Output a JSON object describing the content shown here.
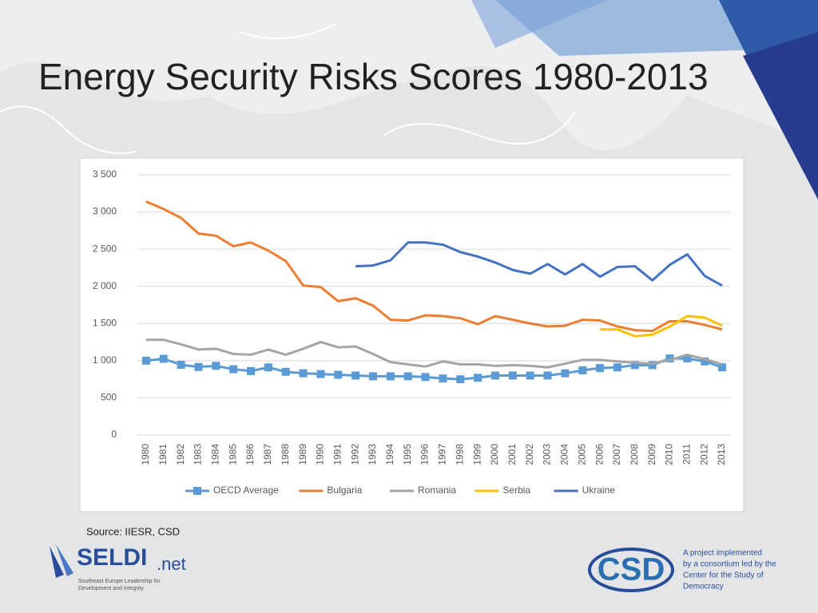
{
  "slide_title": "Energy Security Risks Scores 1980-2013",
  "source": "Source: IIESR, CSD",
  "logo_left": {
    "name": "SELDI",
    "suffix": ".net",
    "tagline": [
      "Southeast Europe Leadership for",
      "Development and Integrity"
    ]
  },
  "logo_right": {
    "name": "CSD",
    "text": [
      "A project implemented",
      "by a consortium led by the",
      "Center for the Study of",
      "Democracy"
    ]
  },
  "chart_data": {
    "type": "line",
    "categories": [
      "1980",
      "1981",
      "1982",
      "1983",
      "1984",
      "1985",
      "1986",
      "1987",
      "1988",
      "1989",
      "1990",
      "1991",
      "1992",
      "1993",
      "1994",
      "1995",
      "1996",
      "1997",
      "1998",
      "1999",
      "2000",
      "2001",
      "2002",
      "2003",
      "2004",
      "2005",
      "2006",
      "2007",
      "2008",
      "2009",
      "2010",
      "2011",
      "2012",
      "2013"
    ],
    "ylim": [
      0,
      3500
    ],
    "yticks": [
      0,
      500,
      {
        "value": 1000,
        "label": "1 000"
      },
      {
        "value": 1500,
        "label": "1 500"
      },
      {
        "value": 2000,
        "label": "2 000"
      },
      {
        "value": 2500,
        "label": "2 500"
      },
      {
        "value": 3000,
        "label": "3 000"
      },
      {
        "value": 3500,
        "label": "3 500"
      }
    ],
    "grid": true,
    "legend": "bottom",
    "series": [
      {
        "name": "OECD Average",
        "color": "#5b9bd5",
        "marker": "square",
        "values": [
          1000,
          1025,
          945,
          915,
          930,
          885,
          860,
          910,
          850,
          830,
          820,
          810,
          800,
          790,
          790,
          790,
          780,
          760,
          750,
          770,
          800,
          800,
          800,
          800,
          830,
          870,
          900,
          910,
          940,
          940,
          1030,
          1030,
          990,
          910
        ]
      },
      {
        "name": "Bulgaria",
        "color": "#ed7d31",
        "values": [
          3140,
          3040,
          2920,
          2710,
          2680,
          2540,
          2590,
          2480,
          2340,
          2010,
          1990,
          1800,
          1840,
          1740,
          1550,
          1540,
          1610,
          1600,
          1570,
          1490,
          1600,
          1550,
          1500,
          1460,
          1470,
          1550,
          1540,
          1460,
          1410,
          1400,
          1530,
          1530,
          1480,
          1420
        ]
      },
      {
        "name": "Romania",
        "color": "#a5a5a5",
        "values": [
          1280,
          1280,
          1220,
          1150,
          1160,
          1090,
          1080,
          1150,
          1080,
          1160,
          1250,
          1180,
          1190,
          1090,
          980,
          950,
          920,
          990,
          950,
          950,
          930,
          940,
          930,
          910,
          960,
          1010,
          1010,
          990,
          970,
          960,
          1010,
          1080,
          1020,
          950
        ]
      },
      {
        "name": "Serbia",
        "color": "#ffc000",
        "values": [
          null,
          null,
          null,
          null,
          null,
          null,
          null,
          null,
          null,
          null,
          null,
          null,
          null,
          null,
          null,
          null,
          null,
          null,
          null,
          null,
          null,
          null,
          null,
          null,
          null,
          null,
          1420,
          1420,
          1330,
          1350,
          1460,
          1600,
          1580,
          1470
        ]
      },
      {
        "name": "Ukraine",
        "color": "#4472c4",
        "values": [
          null,
          null,
          null,
          null,
          null,
          null,
          null,
          null,
          null,
          null,
          null,
          null,
          2270,
          2280,
          2350,
          2590,
          2590,
          2560,
          2460,
          2400,
          2320,
          2220,
          2170,
          2300,
          2160,
          2300,
          2130,
          2260,
          2270,
          2080,
          2290,
          2430,
          2140,
          2010
        ]
      }
    ]
  }
}
